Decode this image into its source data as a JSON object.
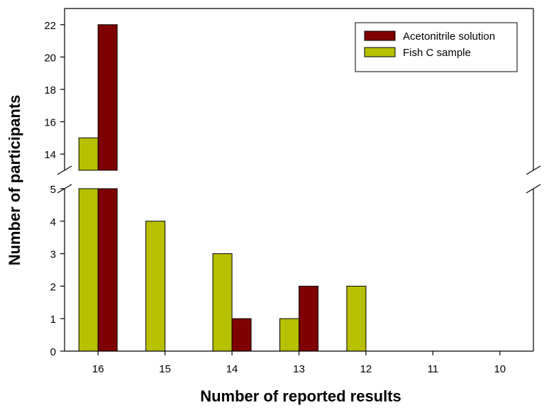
{
  "chart_data": {
    "type": "bar",
    "xlabel": "Number of reported results",
    "ylabel": "Number of participants",
    "categories": [
      "16",
      "15",
      "14",
      "13",
      "12",
      "11",
      "10"
    ],
    "series": [
      {
        "name": "Fish C sample",
        "color": "#B8C000",
        "values": [
          15,
          4,
          3,
          1,
          2,
          0,
          0
        ]
      },
      {
        "name": "Acetonitrile solution",
        "color": "#7F0000",
        "values": [
          22,
          0,
          1,
          2,
          0,
          0,
          0
        ]
      }
    ],
    "legend_order": [
      "Acetonitrile solution",
      "Fish C sample"
    ],
    "legend_position": "top-right",
    "y_axis_break": {
      "lower_range": [
        0,
        5
      ],
      "upper_range": [
        13,
        23
      ],
      "lower_ticks": [
        "0",
        "1",
        "2",
        "3",
        "4",
        "5"
      ],
      "upper_ticks": [
        "14",
        "16",
        "18",
        "20",
        "22"
      ]
    },
    "grid": false
  }
}
